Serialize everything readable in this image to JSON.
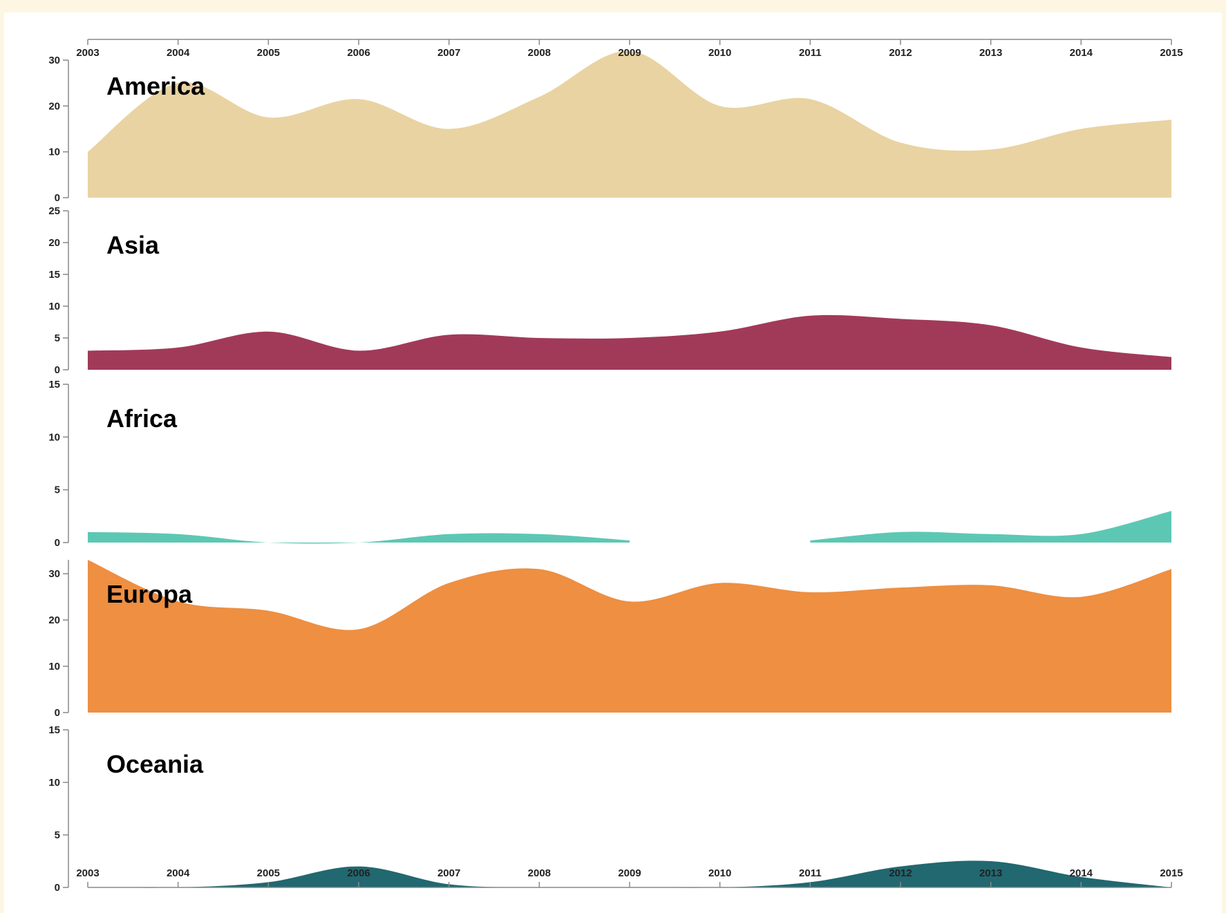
{
  "chart_data": {
    "type": "area",
    "years": [
      "2003",
      "2004",
      "2005",
      "2006",
      "2007",
      "2008",
      "2009",
      "2010",
      "2011",
      "2012",
      "2013",
      "2014",
      "2015"
    ],
    "series": [
      {
        "name": "America",
        "color": "#e9d3a2",
        "ymax": 30,
        "ticks": [
          0,
          10,
          20,
          30
        ],
        "values": [
          10,
          25,
          17.5,
          21.5,
          15,
          22,
          32,
          20,
          21.5,
          12,
          10.5,
          15,
          17
        ]
      },
      {
        "name": "Asia",
        "color": "#a13a58",
        "ymax": 25,
        "ticks": [
          0,
          5,
          10,
          15,
          20,
          25
        ],
        "values": [
          3,
          3.5,
          6,
          3,
          5.5,
          5,
          5,
          6,
          8.5,
          8,
          7,
          3.5,
          2
        ]
      },
      {
        "name": "Africa",
        "color": "#5cc8b3",
        "ymax": 15,
        "ticks": [
          0,
          5,
          10,
          15
        ],
        "values": [
          1,
          0.8,
          0,
          0,
          0.8,
          0.8,
          0.2,
          null,
          0.2,
          1,
          0.8,
          0.8,
          3
        ]
      },
      {
        "name": "Europa",
        "color": "#ee8f42",
        "ymax": 33,
        "ticks": [
          0,
          10,
          20,
          30
        ],
        "values": [
          33,
          24,
          22,
          18,
          28,
          31,
          24,
          28,
          26,
          27,
          27.5,
          25,
          31
        ]
      },
      {
        "name": "Oceania",
        "color": "#226870",
        "ymax": 15,
        "ticks": [
          0,
          5,
          10,
          15
        ],
        "values": [
          0,
          0,
          0.5,
          2,
          0.3,
          0,
          0,
          0,
          0.5,
          2,
          2.5,
          1,
          0
        ]
      }
    ]
  }
}
